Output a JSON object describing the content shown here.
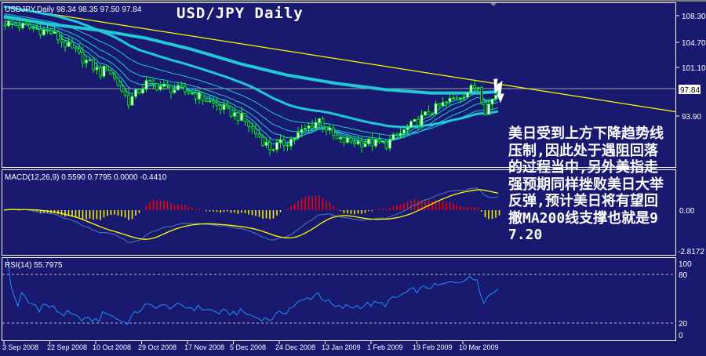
{
  "window": {
    "info_label": "USDJPY,Daily  98.34 98.35 97.50 97.84",
    "overlay_title": "USD/JPY Daily",
    "note": "美日受到上方下降趋势线压制,因此处于遇阻回落的过程当中,另外美指走强预期同样挫败美日大举反弹,预计美日将有望回撤MA200线支撑也就是97.20"
  },
  "colors": {
    "background": "#191970",
    "frame": "#ffffff",
    "candle": "#00ff00",
    "candle_bull_body": "#ffffff",
    "ma_ribbon": "#20c8d8",
    "trendline": "#ffff00",
    "price_line": "#a0a0a0",
    "macd_main": "#4682b4",
    "macd_signal": "#ffff00",
    "hist_positive": "#ff0000",
    "hist_negative": "#ffff00",
    "rsi_line": "#1e90ff",
    "levels": "#c0c0c0"
  },
  "chart_data": [
    {
      "type": "candlestick",
      "symbol": "USDJPY",
      "timeframe": "Daily",
      "last": {
        "open": 98.34,
        "high": 98.35,
        "low": 97.5,
        "close": 97.84
      },
      "y_ticks": [
        "108.30",
        "104.70",
        "101.10",
        "93.90"
      ],
      "y_tick_values": [
        108.3,
        104.7,
        101.1,
        93.9
      ],
      "current_price_label": "97.84",
      "current_price": 97.84,
      "x_ticks": [
        "3 Sep 2008",
        "22 Sep 2008",
        "10 Oct 2008",
        "29 Oct 2008",
        "17 Nov 2008",
        "5 Dec 2008",
        "24 Dec 2008",
        "13 Jan 2009",
        "1 Feb 2009",
        "19 Feb 2009",
        "10 Mar 2009"
      ],
      "approx_closes": [
        {
          "date": "2008-09-03",
          "close": 107.3
        },
        {
          "date": "2008-09-22",
          "close": 105.9
        },
        {
          "date": "2008-10-10",
          "close": 100.1
        },
        {
          "date": "2008-10-14",
          "close": 100.9
        },
        {
          "date": "2008-10-22",
          "close": 96.0
        },
        {
          "date": "2008-10-29",
          "close": 98.6
        },
        {
          "date": "2008-11-17",
          "close": 97.2
        },
        {
          "date": "2008-12-05",
          "close": 93.6
        },
        {
          "date": "2008-12-17",
          "close": 89.3
        },
        {
          "date": "2008-12-24",
          "close": 90.2
        },
        {
          "date": "2009-01-06",
          "close": 93.4
        },
        {
          "date": "2009-01-13",
          "close": 90.4
        },
        {
          "date": "2009-02-02",
          "close": 89.9
        },
        {
          "date": "2009-02-19",
          "close": 94.7
        },
        {
          "date": "2009-03-10",
          "close": 98.3
        },
        {
          "date": "2009-03-12",
          "close": 94.8
        },
        {
          "date": "2009-03-18",
          "close": 97.84
        }
      ],
      "ma200": [
        {
          "date": "2008-09-03",
          "value": 108.2
        },
        {
          "date": "2008-09-22",
          "value": 107.1
        },
        {
          "date": "2008-10-10",
          "value": 106.2
        },
        {
          "date": "2008-10-29",
          "value": 105.1
        },
        {
          "date": "2008-11-17",
          "value": 103.5
        },
        {
          "date": "2008-12-05",
          "value": 101.4
        },
        {
          "date": "2008-12-24",
          "value": 99.8
        },
        {
          "date": "2009-01-13",
          "value": 98.6
        },
        {
          "date": "2009-02-02",
          "value": 97.7
        },
        {
          "date": "2009-02-19",
          "value": 97.2
        },
        {
          "date": "2009-03-10",
          "value": 97.2
        },
        {
          "date": "2009-03-18",
          "value": 97.4
        }
      ],
      "ma_periods": [
        5,
        8,
        13,
        21,
        34,
        55
      ],
      "trendline": {
        "from": {
          "date": "2008-09-17",
          "price": 108.8
        },
        "to": {
          "date": "2009-03-18",
          "price": 98.5
        }
      }
    },
    {
      "type": "line",
      "indicator": "MACD",
      "label": "MACD(12,26,9) 0.5590 0.7795 0.0000 -0.4410",
      "y_ticks": [
        "0.00",
        "-2.8172"
      ],
      "y_tick_values": [
        0,
        -2.8172
      ]
    },
    {
      "type": "line",
      "indicator": "RSI",
      "label": "RSI(14) 55.7975",
      "y_ticks": [
        "100",
        "80",
        "20",
        "0"
      ],
      "y_tick_values": [
        100,
        80,
        20,
        0
      ],
      "levels": [
        80,
        20
      ]
    }
  ]
}
